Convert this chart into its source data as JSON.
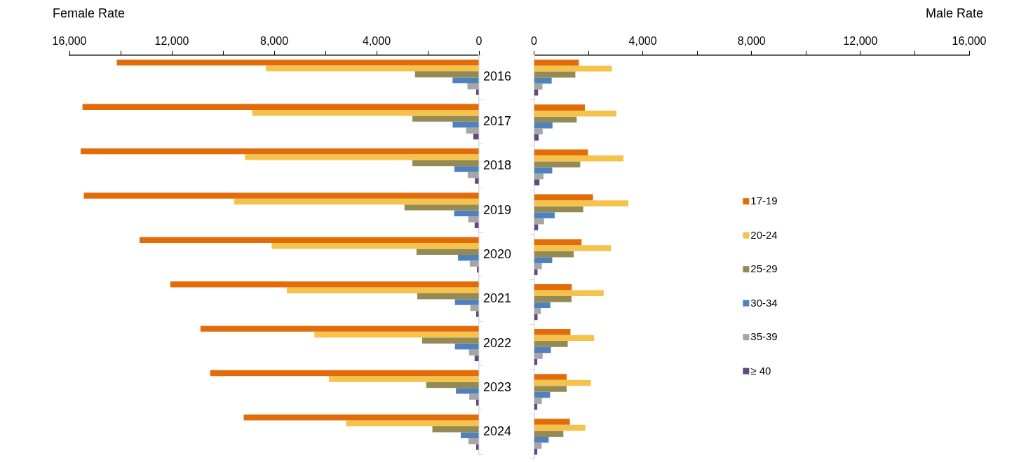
{
  "chart_data": [
    {
      "type": "bar",
      "orientation": "horizontal",
      "xlabel": "Female Rate",
      "categories": [
        "2016",
        "2017",
        "2018",
        "2019",
        "2020",
        "2021",
        "2022",
        "2023",
        "2024"
      ],
      "xlim": [
        16000,
        0
      ],
      "xticks": [
        {
          "value": 16000,
          "label": "16,000"
        },
        {
          "value": 14000,
          "label": null
        },
        {
          "value": 12000,
          "label": "12,000"
        },
        {
          "value": 10000,
          "label": null
        },
        {
          "value": 8000,
          "label": "8,000"
        },
        {
          "value": 6000,
          "label": null
        },
        {
          "value": 4000,
          "label": "4,000"
        },
        {
          "value": 2000,
          "label": null
        },
        0
      ],
      "grid": false,
      "legend": false,
      "series": [
        {
          "color": "#e36c0a",
          "values": [
            14150,
            15490,
            15560,
            15440,
            13260,
            12060,
            10880,
            10500,
            9190
          ]
        },
        {
          "color": "#f5c24c",
          "values": [
            8320,
            8860,
            9140,
            9560,
            8100,
            7510,
            6430,
            5860,
            5190
          ]
        },
        {
          "color": "#948a54",
          "values": [
            2500,
            2600,
            2600,
            2910,
            2440,
            2410,
            2220,
            2060,
            1820
          ]
        },
        {
          "color": "#4f81bd",
          "values": [
            1030,
            1030,
            960,
            970,
            820,
            940,
            940,
            900,
            710
          ]
        },
        {
          "color": "#a6a6a6",
          "values": [
            450,
            500,
            440,
            420,
            360,
            340,
            390,
            380,
            410
          ]
        },
        {
          "color": "#604a7b",
          "values": [
            110,
            220,
            160,
            170,
            80,
            110,
            170,
            110,
            110
          ]
        }
      ]
    },
    {
      "type": "bar",
      "orientation": "horizontal",
      "xlabel": "Male Rate",
      "categories": [
        "2016",
        "2017",
        "2018",
        "2019",
        "2020",
        "2021",
        "2022",
        "2023",
        "2024"
      ],
      "xlim": [
        0,
        16000
      ],
      "xticks": [
        0,
        {
          "value": 2000,
          "label": null
        },
        {
          "value": 4000,
          "label": "4,000"
        },
        {
          "value": 6000,
          "label": null
        },
        {
          "value": 8000,
          "label": "8,000"
        },
        {
          "value": 10000,
          "label": null
        },
        {
          "value": 12000,
          "label": "12,000"
        },
        {
          "value": 14000,
          "label": null
        },
        {
          "value": 16000,
          "label": "16,000"
        }
      ],
      "grid": false,
      "legend": "right",
      "tick_labels": "x",
      "series": [
        {
          "name": "17-19",
          "color": "#e36c0a",
          "values": [
            1650,
            1870,
            1980,
            2170,
            1750,
            1390,
            1340,
            1200,
            1320
          ]
        },
        {
          "name": "20-24",
          "color": "#f5c24c",
          "values": [
            2860,
            3030,
            3290,
            3470,
            2830,
            2560,
            2210,
            2090,
            1890
          ]
        },
        {
          "name": "25-29",
          "color": "#948a54",
          "values": [
            1520,
            1570,
            1700,
            1810,
            1460,
            1380,
            1240,
            1200,
            1080
          ]
        },
        {
          "name": "30-34",
          "color": "#4f81bd",
          "values": [
            650,
            680,
            670,
            760,
            670,
            600,
            620,
            590,
            540
          ]
        },
        {
          "name": "35-39",
          "color": "#a6a6a6",
          "values": [
            310,
            320,
            350,
            370,
            290,
            250,
            320,
            290,
            280
          ]
        },
        {
          "name": "≥ 40",
          "color": "#604a7b",
          "values": [
            150,
            170,
            200,
            150,
            130,
            130,
            120,
            120,
            120
          ]
        }
      ]
    }
  ]
}
